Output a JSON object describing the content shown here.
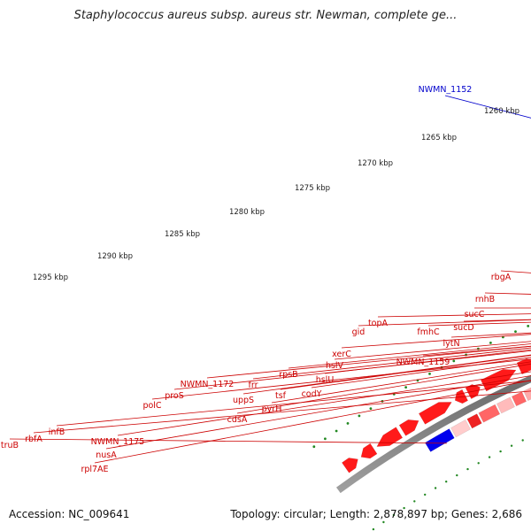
{
  "title": "Staphylococcus aureus subsp. aureus str. Newman, complete ge...",
  "accession": "Accession: NC_009641",
  "topology": "Topology: circular; Length: 2,878,897 bp; Genes: 2,686",
  "ruler": [
    {
      "label": "1260 kbp"
    },
    {
      "label": "1265 kbp"
    },
    {
      "label": "1270 kbp"
    },
    {
      "label": "1275 kbp"
    },
    {
      "label": "1280 kbp"
    },
    {
      "label": "1285 kbp"
    },
    {
      "label": "1290 kbp"
    },
    {
      "label": "1295 kbp"
    }
  ],
  "gene_labels": [
    {
      "name": "NWMN_1152"
    },
    {
      "name": "rbgA"
    },
    {
      "name": "rnhB"
    },
    {
      "name": "sucC"
    },
    {
      "name": "sucD"
    },
    {
      "name": "lytN"
    },
    {
      "name": "fmhC"
    },
    {
      "name": "NWMN_1159"
    },
    {
      "name": "topA"
    },
    {
      "name": "gid"
    },
    {
      "name": "xerC"
    },
    {
      "name": "hslV"
    },
    {
      "name": "hslU"
    },
    {
      "name": "codY"
    },
    {
      "name": "rpsB"
    },
    {
      "name": "tsf"
    },
    {
      "name": "pyrH"
    },
    {
      "name": "frr"
    },
    {
      "name": "uppS"
    },
    {
      "name": "cdsA"
    },
    {
      "name": "NWMN_1172"
    },
    {
      "name": "proS"
    },
    {
      "name": "polC"
    },
    {
      "name": "NWMN_1175"
    },
    {
      "name": "nusA"
    },
    {
      "name": "rpl7AE"
    },
    {
      "name": "infB"
    },
    {
      "name": "rbfA"
    },
    {
      "name": "truB"
    }
  ],
  "colors": {
    "label_red": "#cc0000",
    "label_blue": "#0000cc",
    "ruler": "#228822",
    "backbone": "#808080"
  }
}
